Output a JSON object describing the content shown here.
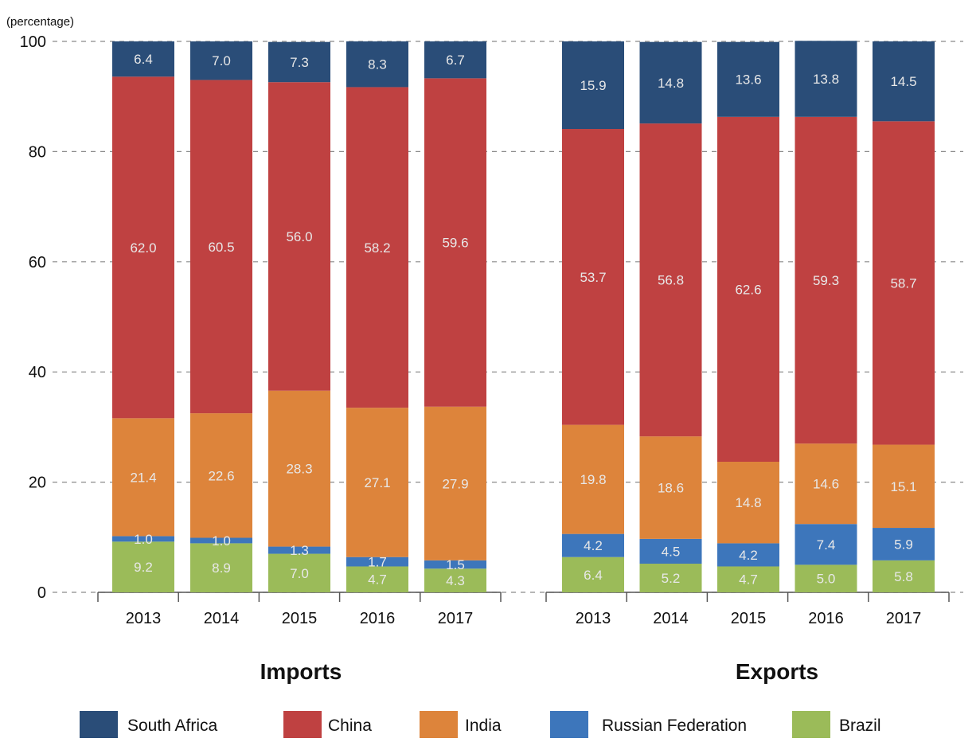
{
  "chart_data": {
    "type": "bar",
    "stacked": true,
    "ylabel": "(percentage)",
    "ylim": [
      0,
      100
    ],
    "yticks": [
      0,
      20,
      40,
      60,
      80,
      100
    ],
    "grid": "dashed-horizontal",
    "legend_position": "bottom",
    "colors": {
      "South Africa": "#2a4d78",
      "China": "#bf4141",
      "India": "#dd843b",
      "Russian Federation": "#3d76bb",
      "Brazil": "#9bbb59"
    },
    "stack_order": [
      "Brazil",
      "Russian Federation",
      "India",
      "China",
      "South Africa"
    ],
    "legend_order": [
      "South Africa",
      "China",
      "India",
      "Russian Federation",
      "Brazil"
    ],
    "panels": [
      {
        "title": "Imports",
        "categories": [
          "2013",
          "2014",
          "2015",
          "2016",
          "2017"
        ],
        "series": [
          {
            "name": "South Africa",
            "values": [
              6.4,
              7.0,
              7.3,
              8.3,
              6.7
            ],
            "labels": [
              "6.4",
              "7.0",
              "7.3",
              "8.3",
              "6.7"
            ]
          },
          {
            "name": "China",
            "values": [
              62.0,
              60.5,
              56.0,
              58.2,
              59.6
            ],
            "labels": [
              "62.0",
              "60.5",
              "56.0",
              "58.2",
              "59.6"
            ]
          },
          {
            "name": "India",
            "values": [
              21.4,
              22.6,
              28.3,
              27.1,
              27.9
            ],
            "labels": [
              "21.4",
              "22.6",
              "28.3",
              "27.1",
              "27.9"
            ]
          },
          {
            "name": "Russian Federation",
            "values": [
              1.0,
              1.0,
              1.3,
              1.7,
              1.5
            ],
            "labels": [
              "1.0",
              "1.0",
              "1.3",
              "1.7",
              "1.5"
            ]
          },
          {
            "name": "Brazil",
            "values": [
              9.2,
              8.9,
              7.0,
              4.7,
              4.3
            ],
            "labels": [
              "9.2",
              "8.9",
              "7.0",
              "4.7",
              "4.3"
            ]
          }
        ]
      },
      {
        "title": "Exports",
        "categories": [
          "2013",
          "2014",
          "2015",
          "2016",
          "2017"
        ],
        "series": [
          {
            "name": "South Africa",
            "values": [
              15.9,
              14.8,
              13.6,
              13.8,
              14.5
            ],
            "labels": [
              "15.9",
              "14.8",
              "13.6",
              "13.8",
              "14.5"
            ]
          },
          {
            "name": "China",
            "values": [
              53.7,
              56.8,
              62.6,
              59.3,
              58.7
            ],
            "labels": [
              "53.7",
              "56.8",
              "62.6",
              "59.3",
              "58.7"
            ]
          },
          {
            "name": "India",
            "values": [
              19.8,
              18.6,
              14.8,
              14.6,
              15.1
            ],
            "labels": [
              "19.8",
              "18.6",
              "14.8",
              "14.6",
              "15.1"
            ]
          },
          {
            "name": "Russian Federation",
            "values": [
              4.2,
              4.5,
              4.2,
              7.4,
              5.9
            ],
            "labels": [
              "4.2",
              "4.5",
              "4.2",
              "7.4",
              "5.9"
            ]
          },
          {
            "name": "Brazil",
            "values": [
              6.4,
              5.2,
              4.7,
              5.0,
              5.8
            ],
            "labels": [
              "6.4",
              "5.2",
              "4.7",
              "5.0",
              "5.8"
            ]
          }
        ]
      }
    ]
  }
}
